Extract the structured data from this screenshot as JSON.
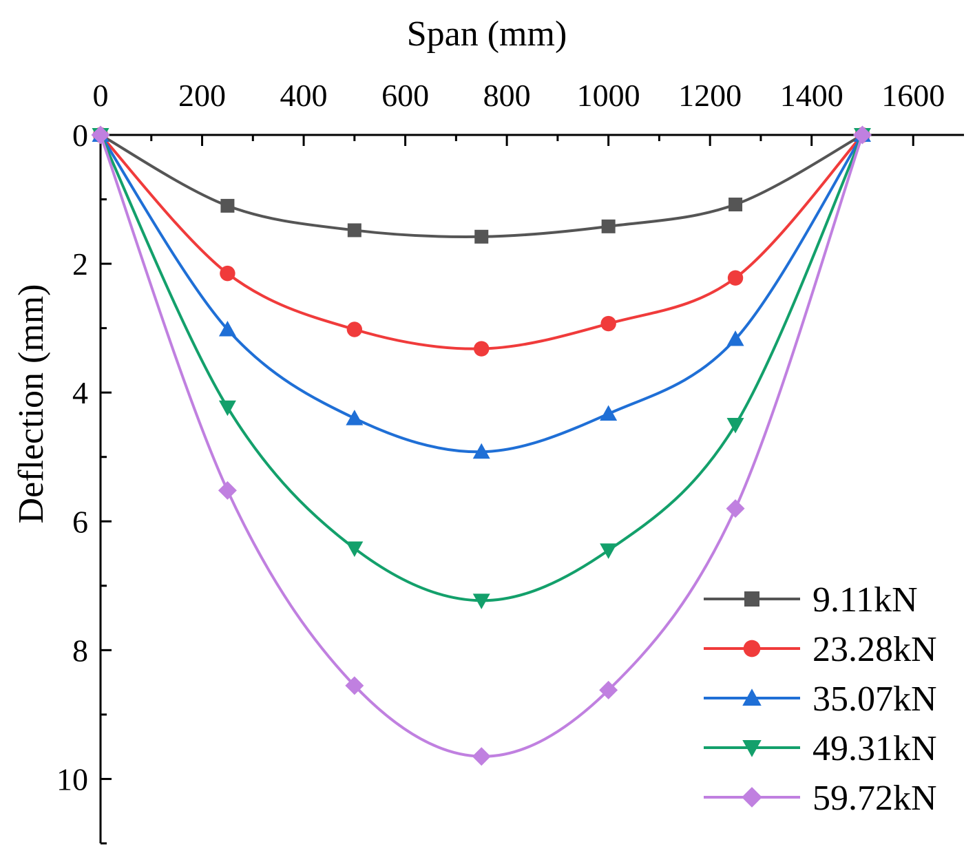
{
  "chart_data": {
    "type": "line",
    "title": "",
    "xlabel": "Span (mm)",
    "ylabel": "Deflection (mm)",
    "xlim": [
      0,
      1700
    ],
    "ylim": [
      0,
      11
    ],
    "y_inverted": true,
    "x_axis_position": "top",
    "x_ticks": [
      0,
      200,
      400,
      600,
      800,
      1000,
      1200,
      1400,
      1600
    ],
    "x_tick_labels": [
      "0",
      "200",
      "400",
      "600",
      "800",
      "1000",
      "1200",
      "1400",
      "1600"
    ],
    "y_ticks": [
      0,
      2,
      4,
      6,
      8,
      10
    ],
    "y_tick_labels": [
      "0",
      "2",
      "4",
      "6",
      "8",
      "10"
    ],
    "grid": false,
    "legend_position": "bottom-right",
    "x": [
      0,
      250,
      500,
      750,
      1000,
      1250,
      1500
    ],
    "series": [
      {
        "name": "9.11kN",
        "color": "#555555",
        "marker": "square",
        "values": [
          0,
          1.1,
          1.48,
          1.58,
          1.42,
          1.08,
          0
        ]
      },
      {
        "name": "23.28kN",
        "color": "#f03b3b",
        "marker": "circle",
        "values": [
          0,
          2.15,
          3.02,
          3.32,
          2.93,
          2.22,
          0
        ]
      },
      {
        "name": "35.07kN",
        "color": "#1f6fd6",
        "marker": "triangle-up",
        "values": [
          0,
          3.02,
          4.4,
          4.92,
          4.33,
          3.17,
          0
        ]
      },
      {
        "name": "49.31kN",
        "color": "#13a06b",
        "marker": "triangle-down",
        "values": [
          0,
          4.23,
          6.42,
          7.23,
          6.45,
          4.5,
          0
        ]
      },
      {
        "name": "59.72kN",
        "color": "#c080e0",
        "marker": "diamond",
        "values": [
          0,
          5.52,
          8.55,
          9.65,
          8.62,
          5.8,
          0
        ]
      }
    ]
  }
}
